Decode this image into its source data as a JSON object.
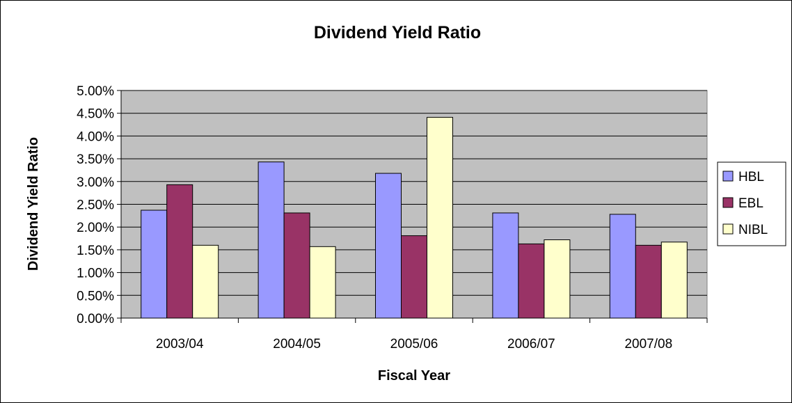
{
  "chart_data": {
    "type": "bar",
    "title": "Dividend Yield Ratio",
    "xlabel": "Fiscal Year",
    "ylabel": "Dividend Yield Ratio",
    "categories": [
      "2003/04",
      "2004/05",
      "2005/06",
      "2006/07",
      "2007/08"
    ],
    "ylim": [
      0,
      5
    ],
    "yticks": [
      "0.00%",
      "0.50%",
      "1.00%",
      "1.50%",
      "2.00%",
      "2.50%",
      "3.00%",
      "3.50%",
      "4.00%",
      "4.50%",
      "5.00%"
    ],
    "grid": true,
    "legend_position": "right",
    "series": [
      {
        "name": "HBL",
        "color": "#9999ff",
        "values": [
          2.37,
          3.43,
          3.18,
          2.31,
          2.28
        ]
      },
      {
        "name": "EBL",
        "color": "#993366",
        "values": [
          2.93,
          2.31,
          1.81,
          1.63,
          1.6
        ]
      },
      {
        "name": "NIBL",
        "color": "#ffffcc",
        "values": [
          1.6,
          1.57,
          4.41,
          1.72,
          1.67
        ]
      }
    ],
    "plot_background": "#c0c0c0"
  }
}
